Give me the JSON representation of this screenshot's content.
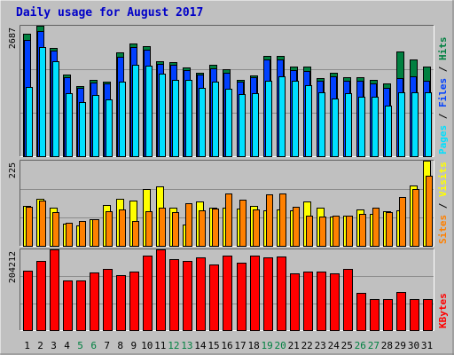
{
  "title": "Daily usage for August 2017",
  "colors": {
    "background": "#c0c0c0",
    "frame": "#e0e0e0",
    "border": "#808080",
    "hits": "#008040",
    "files": "#0040ff",
    "pages": "#00e0ff",
    "sites": "#ff8000",
    "visits": "#ffff00",
    "kbytes": "#ff0000",
    "title": "#0000c8",
    "weekend_day": "#008040",
    "weekday": "#000000"
  },
  "chart_data": [
    {
      "type": "bar",
      "panel": "hits-files-pages",
      "ymax_label": "2687",
      "ylim": [
        0,
        2687
      ],
      "right_labels": [
        "Pages",
        "/",
        "Files",
        "/",
        "Hits"
      ],
      "categories": [
        "1",
        "2",
        "3",
        "4",
        "5",
        "6",
        "7",
        "8",
        "9",
        "10",
        "11",
        "12",
        "13",
        "14",
        "15",
        "16",
        "17",
        "18",
        "19",
        "20",
        "21",
        "22",
        "23",
        "24",
        "25",
        "26",
        "27",
        "28",
        "29",
        "30",
        "31"
      ],
      "weekend_days": [
        "5",
        "6",
        "12",
        "13",
        "19",
        "20",
        "26",
        "27"
      ],
      "series": [
        {
          "name": "Hits",
          "values": [
            2517,
            2687,
            2230,
            1690,
            1450,
            1580,
            1540,
            2130,
            2320,
            2270,
            1950,
            1930,
            1830,
            1720,
            1890,
            1790,
            1580,
            1670,
            2070,
            2070,
            1840,
            1840,
            1610,
            1710,
            1630,
            1630,
            1580,
            1490,
            2160,
            1990,
            1840
          ]
        },
        {
          "name": "Files",
          "values": [
            2390,
            2570,
            2170,
            1620,
            1410,
            1520,
            1490,
            2050,
            2240,
            2200,
            1900,
            1880,
            1780,
            1680,
            1810,
            1710,
            1540,
            1620,
            1990,
            1990,
            1770,
            1760,
            1550,
            1640,
            1560,
            1560,
            1500,
            1410,
            1610,
            1640,
            1560
          ]
        },
        {
          "name": "Pages",
          "values": [
            1420,
            2240,
            1960,
            1300,
            1120,
            1260,
            1170,
            1530,
            1890,
            1860,
            1700,
            1580,
            1580,
            1410,
            1530,
            1390,
            1280,
            1300,
            1560,
            1640,
            1560,
            1460,
            1320,
            1190,
            1290,
            1220,
            1230,
            1050,
            1310,
            1320,
            1310
          ]
        }
      ]
    },
    {
      "type": "bar",
      "panel": "sites-visits",
      "ymax_label": "225",
      "ylim": [
        0,
        225
      ],
      "right_labels": [
        "Sites",
        "/",
        "Visits"
      ],
      "categories": [
        "1",
        "2",
        "3",
        "4",
        "5",
        "6",
        "7",
        "8",
        "9",
        "10",
        "11",
        "12",
        "13",
        "14",
        "15",
        "16",
        "17",
        "18",
        "19",
        "20",
        "21",
        "22",
        "23",
        "24",
        "25",
        "26",
        "27",
        "28",
        "29",
        "30",
        "31"
      ],
      "series": [
        {
          "name": "Visits",
          "values": [
            105,
            125,
            100,
            58,
            55,
            70,
            108,
            125,
            120,
            150,
            158,
            100,
            56,
            118,
            100,
            100,
            98,
            105,
            94,
            96,
            94,
            118,
            100,
            78,
            80,
            95,
            84,
            92,
            93,
            160,
            225
          ]
        },
        {
          "name": "Sites",
          "values": [
            103,
            120,
            88,
            60,
            66,
            70,
            91,
            96,
            66,
            92,
            100,
            90,
            113,
            93,
            98,
            138,
            122,
            96,
            135,
            138,
            102,
            80,
            78,
            80,
            80,
            84,
            100,
            90,
            128,
            150,
            185
          ]
        }
      ]
    },
    {
      "type": "bar",
      "panel": "kbytes",
      "ymax_label": "204212",
      "ylim": [
        0,
        204212
      ],
      "right_labels": [
        "KBytes"
      ],
      "categories": [
        "1",
        "2",
        "3",
        "4",
        "5",
        "6",
        "7",
        "8",
        "9",
        "10",
        "11",
        "12",
        "13",
        "14",
        "15",
        "16",
        "17",
        "18",
        "19",
        "20",
        "21",
        "22",
        "23",
        "24",
        "25",
        "26",
        "27",
        "28",
        "29",
        "30",
        "31"
      ],
      "series": [
        {
          "name": "KBytes",
          "values": [
            150000,
            175000,
            204212,
            125000,
            125000,
            145000,
            155000,
            140000,
            148000,
            188000,
            204212,
            180000,
            176000,
            184000,
            165000,
            188000,
            170000,
            188000,
            184000,
            186000,
            143000,
            148000,
            148000,
            143000,
            155000,
            94000,
            78000,
            78000,
            97000,
            78000,
            79000
          ]
        }
      ]
    }
  ]
}
